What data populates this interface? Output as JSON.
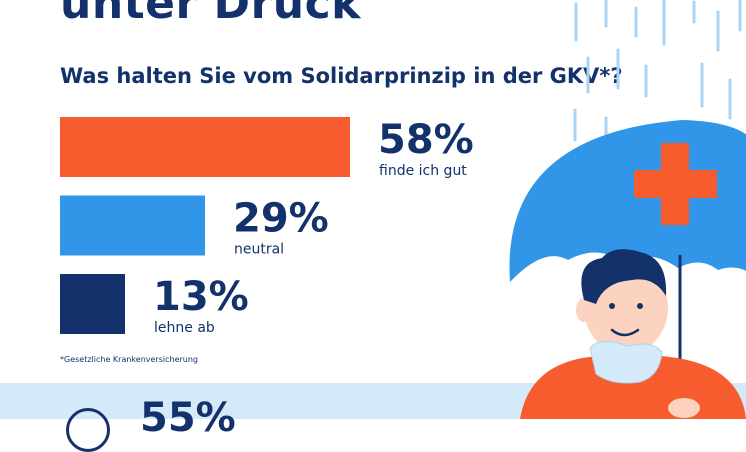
{
  "header": {
    "title": "unter Druck",
    "question": "Was halten Sie vom Solidarprinzip in der GKV*?"
  },
  "chart_data": {
    "type": "bar",
    "orientation": "horizontal",
    "title": "Was halten Sie vom Solidarprinzip in der GKV*?",
    "unit": "%",
    "xlim": [
      0,
      100
    ],
    "grid": false,
    "categories": [
      "finde ich gut",
      "neutral",
      "lehne ab"
    ],
    "values": [
      58,
      29,
      13
    ],
    "value_labels": [
      "58%",
      "29%",
      "13%"
    ],
    "colors": [
      "#f75c2f",
      "#3195e8",
      "#13326b"
    ]
  },
  "footnote": "*Gesetzliche Krankenversicherung",
  "bottom_band": {
    "stat": "55%"
  },
  "colors": {
    "navy": "#13326b",
    "orange": "#f75c2f",
    "blue": "#3195e8",
    "light_blue": "#d5eaf8",
    "rain": "#a9d4f5"
  },
  "illustration": {
    "icon": "person-with-umbrella-in-rain",
    "cross_icon": "medical-cross-icon"
  }
}
